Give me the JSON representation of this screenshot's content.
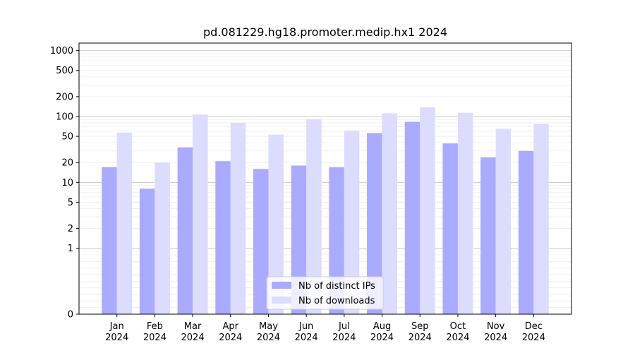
{
  "chart_data": {
    "type": "bar",
    "title": "pd.081229.hg18.promoter.medip.hx1 2024",
    "xlabel": "",
    "ylabel": "",
    "yscale": "symlog",
    "ylim": [
      0,
      1300
    ],
    "categories": [
      [
        "Jan",
        "2024"
      ],
      [
        "Feb",
        "2024"
      ],
      [
        "Mar",
        "2024"
      ],
      [
        "Apr",
        "2024"
      ],
      [
        "May",
        "2024"
      ],
      [
        "Jun",
        "2024"
      ],
      [
        "Jul",
        "2024"
      ],
      [
        "Aug",
        "2024"
      ],
      [
        "Sep",
        "2024"
      ],
      [
        "Oct",
        "2024"
      ],
      [
        "Nov",
        "2024"
      ],
      [
        "Dec",
        "2024"
      ]
    ],
    "yticks": [
      "0",
      "1",
      "2",
      "5",
      "10",
      "20",
      "50",
      "100",
      "200",
      "500",
      "1000"
    ],
    "series": [
      {
        "name": "Nb of distinct IPs",
        "color": "#aaaaff",
        "values": [
          17,
          8,
          34,
          21,
          16,
          18,
          17,
          56,
          83,
          39,
          24,
          30
        ]
      },
      {
        "name": "Nb of downloads",
        "color": "#dcdcff",
        "values": [
          57,
          20,
          107,
          80,
          53,
          90,
          61,
          112,
          138,
          114,
          65,
          77
        ]
      }
    ],
    "grid": true,
    "legend_position": "bottom-center"
  }
}
